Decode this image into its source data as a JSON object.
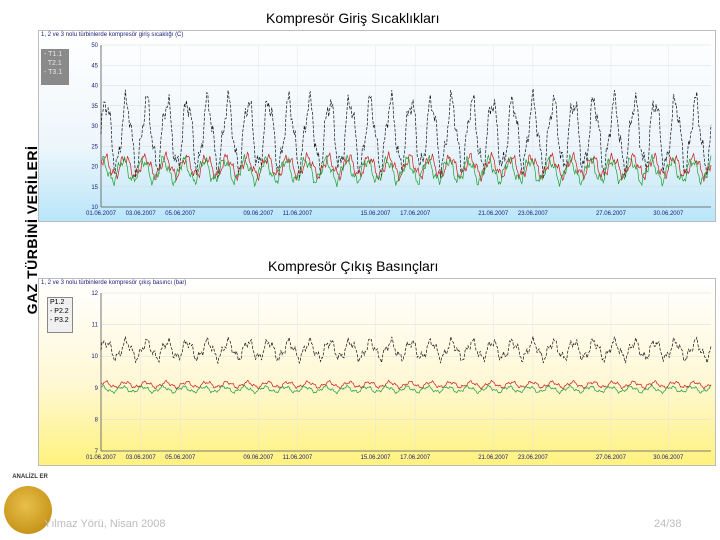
{
  "side_title": "GAZ TÜRBİNİ VERİLERİ",
  "charts": [
    {
      "title": "Kompresör Giriş Sıcaklıkları",
      "subtitle": "1, 2 ve 3 nolu türbinlerde kompresör giriş sıcaklığı (C)",
      "legend": [
        "T1.1",
        "T2.1",
        "T3.1"
      ],
      "y_ticks": [
        "50",
        "45",
        "40",
        "35",
        "30",
        "25",
        "20",
        "15",
        "10"
      ],
      "x_ticks": [
        "01.06.2007",
        "03.06.2007",
        "05.06.2007",
        "09.06.2007",
        "11.06.2007",
        "15.06.2007",
        "17.06.2007",
        "21.06.2007",
        "23.06.2007",
        "27.06.2007",
        "30.06.2007"
      ]
    },
    {
      "title": "Kompresör Çıkış Basınçları",
      "subtitle": "1, 2 ve 3 nolu türbinlerde kompresör çıkış basıncı (bar)",
      "legend": [
        "P1.2",
        "P2.2",
        "P3.2"
      ],
      "y_ticks": [
        "12",
        "11",
        "10",
        "9",
        "8",
        "7"
      ],
      "x_ticks": [
        "01.06.2007",
        "03.06.2007",
        "05.06.2007",
        "09.06.2007",
        "11.06.2007",
        "15.06.2007",
        "17.06.2007",
        "21.06.2007",
        "23.06.2007",
        "27.06.2007",
        "30.06.2007"
      ]
    }
  ],
  "logo_text": "ANALİZL ER",
  "footer": {
    "author": "Yılmaz Yörü, Nisan 2008",
    "page": "24/38"
  },
  "colors": {
    "series1": "#111111",
    "series2": "#cc1a1a",
    "series3": "#1e9e2e",
    "panel1_bottom": "#b9e6fa",
    "panel2_bottom": "#fff27e"
  }
}
